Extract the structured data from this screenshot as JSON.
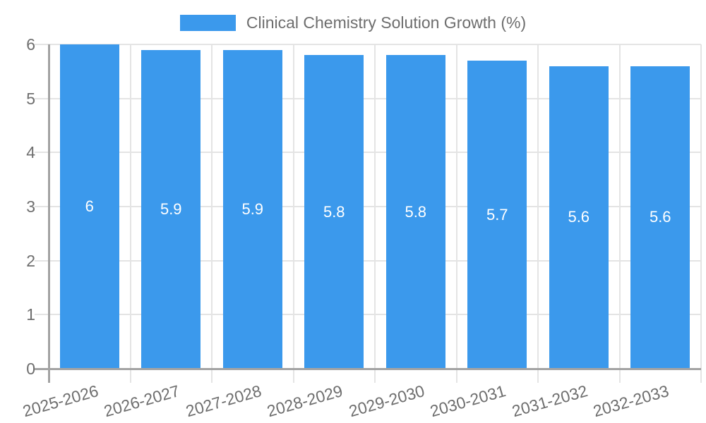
{
  "chart_data": {
    "type": "bar",
    "title": "Clinical Chemistry Solution Growth (%)",
    "legend": {
      "label": "Clinical Chemistry Solution Growth (%)",
      "position": "top"
    },
    "categories": [
      "2025-2026",
      "2026-2027",
      "2027-2028",
      "2028-2029",
      "2029-2030",
      "2030-2031",
      "2031-2032",
      "2032-2033"
    ],
    "values": [
      6,
      5.9,
      5.9,
      5.8,
      5.8,
      5.7,
      5.6,
      5.6
    ],
    "value_labels": [
      "6",
      "5.9",
      "5.9",
      "5.8",
      "5.8",
      "5.7",
      "5.6",
      "5.6"
    ],
    "xlabel": "",
    "ylabel": "",
    "ylim": [
      0,
      6
    ],
    "y_ticks": [
      "0",
      "1",
      "2",
      "3",
      "4",
      "5",
      "6"
    ],
    "grid": true,
    "colors": {
      "bar": "#3B99EC",
      "value_label": "#FFFFFF",
      "axis_text": "#6E6E6E",
      "grid_line": "#E4E4E4",
      "axis_line": "#A3A3A3"
    }
  }
}
